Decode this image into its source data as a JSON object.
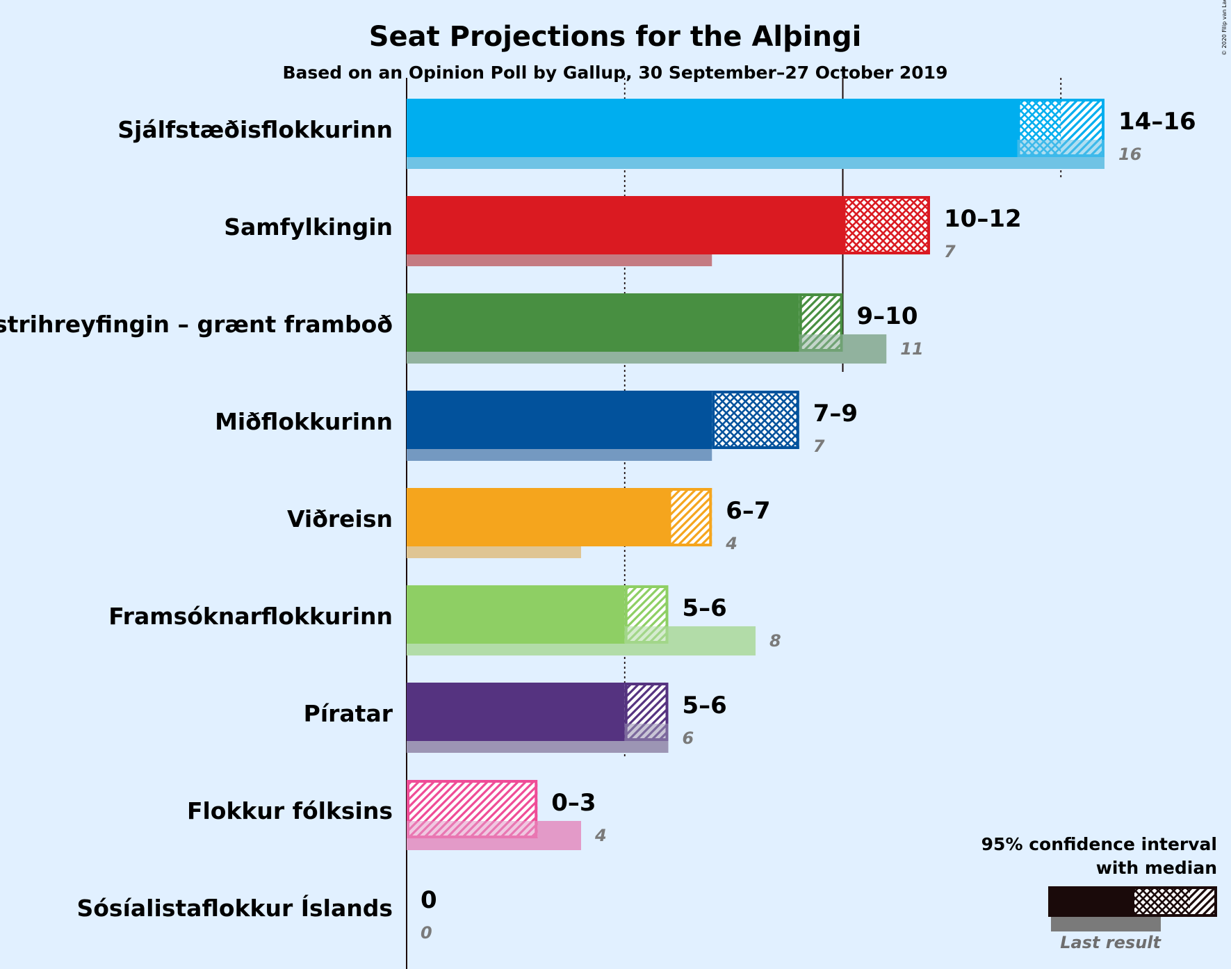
{
  "title": "Seat Projections for the Alþingi",
  "subtitle": "Based on an Opinion Poll by Gallup, 30 September–27 October 2019",
  "credit": "© 2020 Filip van Laenen",
  "legend": {
    "ci_line1": "95% confidence interval",
    "ci_line2": "with median",
    "last_result": "Last result"
  },
  "chart_data": {
    "type": "bar",
    "orientation": "horizontal",
    "x_unit": "seats",
    "xlim": [
      0,
      16
    ],
    "gridlines": [
      5,
      10,
      15
    ],
    "majority_line": 15,
    "parties": [
      {
        "name": "Sjálfstæðisflokkurinn",
        "low": 14,
        "median": 15,
        "high": 16,
        "range_label": "14–16",
        "last_result": 16,
        "last_label": "16",
        "color": "#00aeef",
        "last_color": "#6fc3e5"
      },
      {
        "name": "Samfylkingin",
        "low": 10,
        "median": 10,
        "high": 12,
        "range_label": "10–12",
        "last_result": 7,
        "last_label": "7",
        "color": "#da1a21",
        "last_color": "#c47b82"
      },
      {
        "name": "Vinstrihreyfingin – grænt framboð",
        "low": 9,
        "median": 9,
        "high": 10,
        "range_label": "9–10",
        "last_result": 11,
        "last_label": "11",
        "color": "#488f41",
        "last_color": "#91b29e"
      },
      {
        "name": "Miðflokkurinn",
        "low": 7,
        "median": 7,
        "high": 9,
        "range_label": "7–9",
        "last_result": 7,
        "last_label": "7",
        "color": "#02529c",
        "last_color": "#7499c1"
      },
      {
        "name": "Viðreisn",
        "low": 6,
        "median": 6,
        "high": 7,
        "range_label": "6–7",
        "last_result": 4,
        "last_label": "4",
        "color": "#f5a51d",
        "last_color": "#dfc593"
      },
      {
        "name": "Framsóknarflokkurinn",
        "low": 5,
        "median": 5,
        "high": 6,
        "range_label": "5–6",
        "last_result": 8,
        "last_label": "8",
        "color": "#8ecf64",
        "last_color": "#b2dca8"
      },
      {
        "name": "Píratar",
        "low": 5,
        "median": 5,
        "high": 6,
        "range_label": "5–6",
        "last_result": 6,
        "last_label": "6",
        "color": "#553380",
        "last_color": "#9c95b4"
      },
      {
        "name": "Flokkur fólksins",
        "low": 0,
        "median": 0,
        "high": 3,
        "range_label": "0–3",
        "last_result": 4,
        "last_label": "4",
        "color": "#ef4c97",
        "last_color": "#e39ac8"
      },
      {
        "name": "Sósíalistaflokkur Íslands",
        "low": 0,
        "median": 0,
        "high": 0,
        "range_label": "0",
        "last_result": 0,
        "last_label": "0",
        "color": "#e4352e",
        "last_color": "#c8a0a0"
      }
    ]
  }
}
